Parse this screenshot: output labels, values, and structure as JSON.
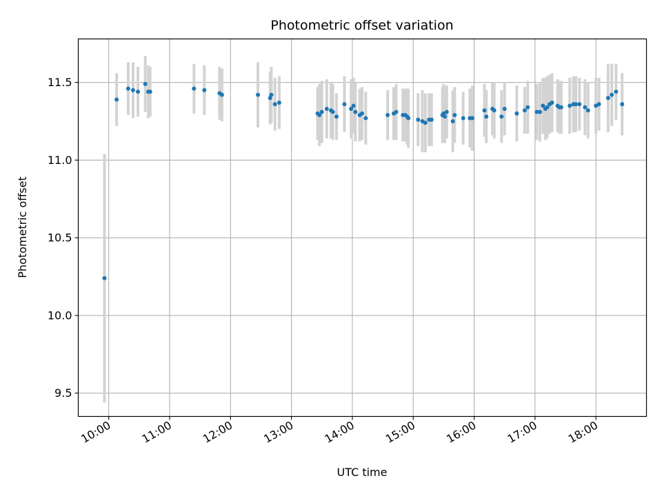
{
  "chart_data": {
    "type": "scatter",
    "title": "Photometric offset variation",
    "xlabel": "UTC time",
    "ylabel": "Photometric offset",
    "xlim": [
      9.5,
      18.83
    ],
    "ylim": [
      9.35,
      11.78
    ],
    "grid": true,
    "x_ticks": [
      {
        "value": 10,
        "label": "10:00"
      },
      {
        "value": 11,
        "label": "11:00"
      },
      {
        "value": 12,
        "label": "12:00"
      },
      {
        "value": 13,
        "label": "13:00"
      },
      {
        "value": 14,
        "label": "14:00"
      },
      {
        "value": 15,
        "label": "15:00"
      },
      {
        "value": 16,
        "label": "16:00"
      },
      {
        "value": 17,
        "label": "17:00"
      },
      {
        "value": 18,
        "label": "18:00"
      }
    ],
    "y_ticks": [
      {
        "value": 9.5,
        "label": "9.5"
      },
      {
        "value": 10.0,
        "label": "10.0"
      },
      {
        "value": 10.5,
        "label": "10.5"
      },
      {
        "value": 11.0,
        "label": "11.0"
      },
      {
        "value": 11.5,
        "label": "11.5"
      }
    ],
    "colors": {
      "point": "#1f77b4",
      "errorbar": "#d3d3d3",
      "grid": "#b0b0b0"
    },
    "series": [
      {
        "name": "offset",
        "x": [
          9.93,
          10.13,
          10.32,
          10.4,
          10.48,
          10.6,
          10.65,
          10.68,
          11.4,
          11.57,
          11.82,
          11.86,
          12.45,
          12.65,
          12.67,
          12.73,
          12.8,
          13.43,
          13.46,
          13.5,
          13.58,
          13.65,
          13.68,
          13.74,
          13.87,
          13.98,
          14.02,
          14.05,
          14.12,
          14.16,
          14.22,
          14.58,
          14.68,
          14.72,
          14.83,
          14.87,
          14.9,
          14.92,
          15.08,
          15.15,
          15.2,
          15.26,
          15.3,
          15.48,
          15.5,
          15.52,
          15.55,
          15.65,
          15.68,
          15.82,
          15.93,
          15.97,
          16.17,
          16.2,
          16.3,
          16.33,
          16.45,
          16.5,
          16.7,
          16.83,
          16.88,
          17.03,
          17.08,
          17.13,
          17.17,
          17.2,
          17.24,
          17.28,
          17.37,
          17.4,
          17.43,
          17.57,
          17.63,
          17.67,
          17.73,
          17.82,
          17.87,
          18.0,
          18.05,
          18.2,
          18.26,
          18.33,
          18.43
        ],
        "y": [
          10.24,
          11.39,
          11.46,
          11.45,
          11.44,
          11.49,
          11.44,
          11.44,
          11.46,
          11.45,
          11.43,
          11.42,
          11.42,
          11.4,
          11.42,
          11.36,
          11.37,
          11.3,
          11.29,
          11.31,
          11.33,
          11.32,
          11.31,
          11.28,
          11.36,
          11.33,
          11.35,
          11.31,
          11.29,
          11.3,
          11.27,
          11.29,
          11.3,
          11.31,
          11.29,
          11.29,
          11.28,
          11.27,
          11.26,
          11.25,
          11.24,
          11.26,
          11.26,
          11.29,
          11.3,
          11.28,
          11.31,
          11.25,
          11.29,
          11.27,
          11.27,
          11.27,
          11.32,
          11.28,
          11.33,
          11.32,
          11.28,
          11.33,
          11.3,
          11.32,
          11.34,
          11.31,
          11.31,
          11.35,
          11.33,
          11.34,
          11.36,
          11.37,
          11.35,
          11.34,
          11.34,
          11.35,
          11.36,
          11.36,
          11.36,
          11.34,
          11.32,
          11.35,
          11.36,
          11.4,
          11.42,
          11.44,
          11.36
        ],
        "yerr": [
          0.8,
          0.17,
          0.17,
          0.18,
          0.16,
          0.18,
          0.17,
          0.16,
          0.16,
          0.16,
          0.17,
          0.17,
          0.21,
          0.17,
          0.18,
          0.17,
          0.17,
          0.17,
          0.2,
          0.2,
          0.19,
          0.18,
          0.18,
          0.15,
          0.18,
          0.19,
          0.18,
          0.19,
          0.17,
          0.17,
          0.17,
          0.16,
          0.17,
          0.18,
          0.17,
          0.17,
          0.18,
          0.19,
          0.17,
          0.2,
          0.19,
          0.17,
          0.17,
          0.18,
          0.19,
          0.17,
          0.17,
          0.2,
          0.18,
          0.17,
          0.19,
          0.21,
          0.17,
          0.17,
          0.17,
          0.18,
          0.17,
          0.17,
          0.18,
          0.15,
          0.17,
          0.18,
          0.19,
          0.18,
          0.2,
          0.2,
          0.19,
          0.19,
          0.17,
          0.17,
          0.17,
          0.18,
          0.18,
          0.18,
          0.17,
          0.18,
          0.18,
          0.18,
          0.17,
          0.22,
          0.2,
          0.18,
          0.2
        ]
      }
    ]
  }
}
